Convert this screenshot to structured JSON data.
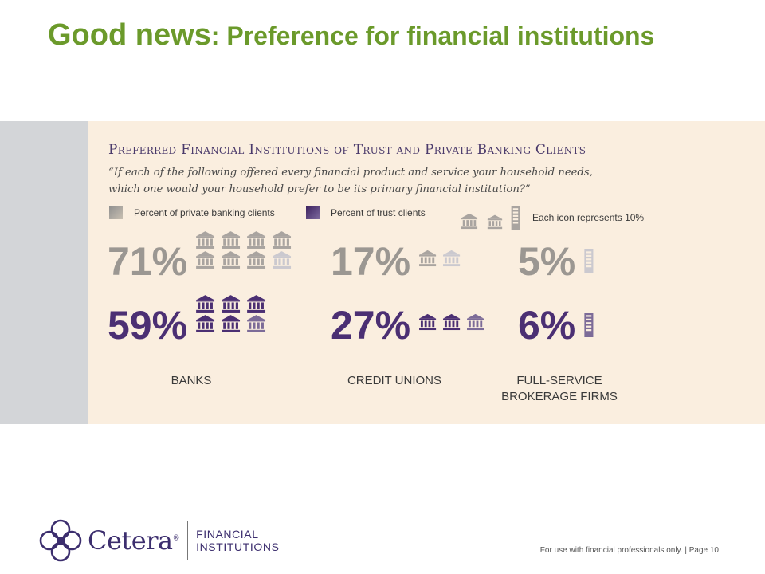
{
  "slide": {
    "title_main": "Good news",
    "title_sub": ": Preference for financial institutions",
    "footer": "For use with financial professionals only.  |  Page 10"
  },
  "logo": {
    "name": "Cetera",
    "sub_line1": "FINANCIAL",
    "sub_line2": "INSTITUTIONS"
  },
  "legend": {
    "private_label": "Percent of private banking clients",
    "trust_label": "Percent of trust clients",
    "icon_label": "Each icon represents 10%"
  },
  "colors": {
    "title_green": "#6b9a2b",
    "panel_bg": "#faeedf",
    "private_gray": "#9e9e9e",
    "trust_purple": "#4b2f73",
    "accent_purple": "#3c2e6e"
  },
  "chart_data": {
    "type": "pictograph",
    "title": "Preferred Financial Institutions of Trust and Private Banking Clients",
    "subtitle": "“If each of the following offered every financial product and service your household needs, which one would your household prefer to be its primary financial institution?”",
    "icon_unit": 10,
    "categories": [
      "BANKS",
      "CREDIT UNIONS",
      "FULL-SERVICE BROKERAGE FIRMS"
    ],
    "category_lines": [
      [
        "BANKS"
      ],
      [
        "CREDIT UNIONS"
      ],
      [
        "FULL-SERVICE",
        "BROKERAGE FIRMS"
      ]
    ],
    "icon_types": [
      "bank",
      "bank",
      "building"
    ],
    "series": [
      {
        "name": "Percent of private banking clients",
        "values": [
          71,
          17,
          5
        ],
        "labels": [
          "71%",
          "17%",
          "5%"
        ]
      },
      {
        "name": "Percent of trust clients",
        "values": [
          59,
          27,
          6
        ],
        "labels": [
          "59%",
          "27%",
          "6%"
        ]
      }
    ]
  }
}
